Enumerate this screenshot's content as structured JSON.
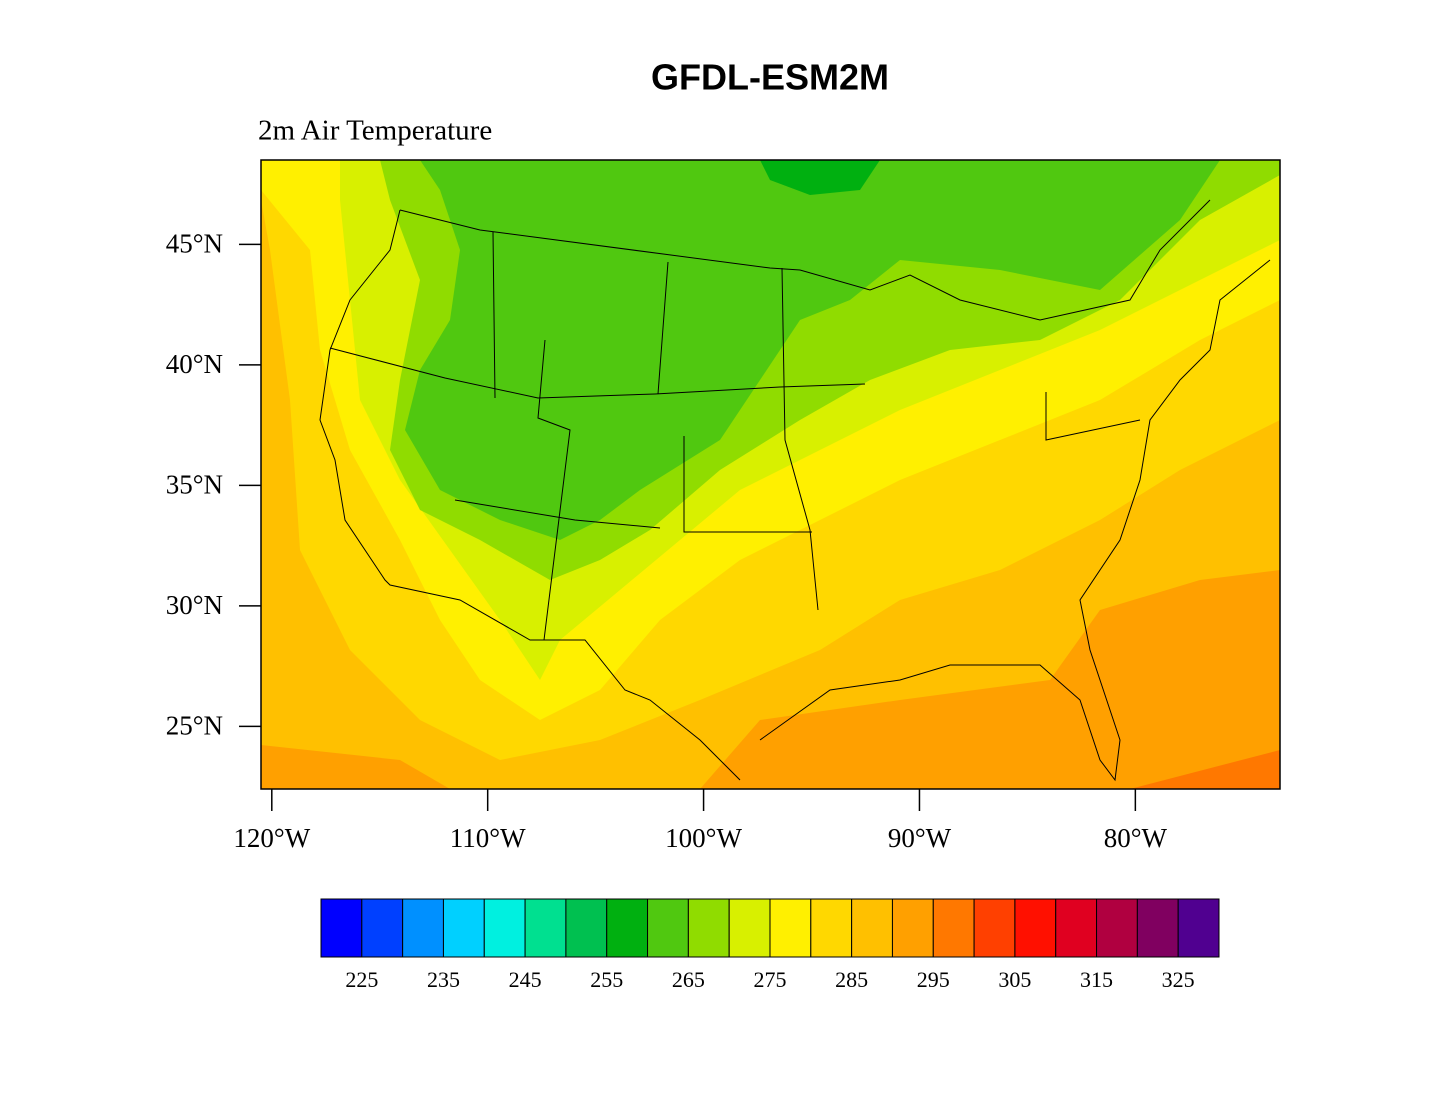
{
  "chart_data": {
    "type": "filled-contour-map",
    "title": "GFDL-ESM2M",
    "subtitle": "2m Air Temperature",
    "xlim": [
      -120.5,
      -73.3
    ],
    "ylim": [
      22.4,
      48.5
    ],
    "xticks": [
      {
        "value": -120,
        "label": "120°W"
      },
      {
        "value": -110,
        "label": "110°W"
      },
      {
        "value": -100,
        "label": "100°W"
      },
      {
        "value": -90,
        "label": "90°W"
      },
      {
        "value": -80,
        "label": "80°W"
      }
    ],
    "yticks": [
      {
        "value": 45,
        "label": "45°N"
      },
      {
        "value": 40,
        "label": "40°N"
      },
      {
        "value": 35,
        "label": "35°N"
      },
      {
        "value": 30,
        "label": "30°N"
      },
      {
        "value": 25,
        "label": "25°N"
      }
    ],
    "colorbar": {
      "lim": [
        220,
        330
      ],
      "ticks": [
        225,
        235,
        245,
        255,
        265,
        275,
        285,
        295,
        305,
        315,
        325
      ],
      "colors": [
        "#0000ff",
        "#0040ff",
        "#0090ff",
        "#00d0ff",
        "#00f0e0",
        "#00e090",
        "#00c050",
        "#00b010",
        "#50c810",
        "#90dc00",
        "#d8f000",
        "#fff000",
        "#ffd800",
        "#ffc000",
        "#ffa000",
        "#ff7800",
        "#ff4000",
        "#ff1000",
        "#e00020",
        "#b00040",
        "#800060",
        "#500090"
      ]
    }
  }
}
